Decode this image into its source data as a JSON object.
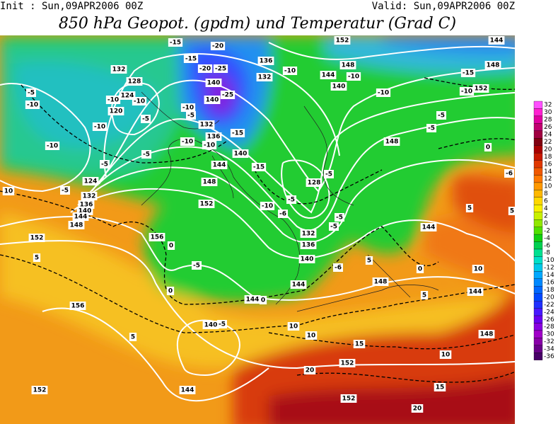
{
  "header": {
    "init": "Init : Sun,09APR2006 00Z",
    "valid": "Valid: Sun,09APR2006 00Z",
    "title": "850 hPa Geopot. (gpdm) und Temperatur (Grad C)"
  },
  "map": {
    "contour_labels": [
      "152",
      "144",
      "-15",
      "-20",
      "-15",
      "-20",
      "-25",
      "136",
      "-10",
      "148",
      "132",
      "144",
      "-10",
      "-15",
      "148",
      "140",
      "128",
      "132",
      "140",
      "-10",
      "-10",
      "152",
      "-25",
      "140",
      "124",
      "120",
      "-10",
      "-10",
      "-5",
      "-10",
      "-5",
      "-5",
      "-10",
      "-5",
      "-10",
      "-5",
      "132",
      "136",
      "-15",
      "-10",
      "-10",
      "-10",
      "-5",
      "148",
      "140",
      "144",
      "-15",
      "0",
      "-5",
      "124",
      "-5",
      "-6",
      "148",
      "128",
      "10",
      "-5",
      "132",
      "136",
      "140",
      "144",
      "148",
      "152",
      "-10",
      "-5",
      "-6",
      "-5",
      "-5",
      "5",
      "5",
      "152",
      "156",
      "0",
      "132",
      "136",
      "140",
      "144",
      "-5",
      "5",
      "0",
      "5",
      "10",
      "-6",
      "144",
      "148",
      "5",
      "144",
      "144",
      "0",
      "0",
      "156",
      "140",
      "-5",
      "10",
      "10",
      "148",
      "5",
      "15",
      "10",
      "152",
      "20",
      "144",
      "152",
      "15",
      "152",
      "20"
    ]
  },
  "colorbar": {
    "values": [
      32,
      30,
      28,
      26,
      24,
      22,
      20,
      18,
      16,
      14,
      12,
      10,
      8,
      6,
      4,
      2,
      0,
      -2,
      -4,
      -6,
      -8,
      -10,
      -12,
      -14,
      -16,
      -18,
      -20,
      -22,
      -24,
      -26,
      -28,
      -30,
      -32,
      -34,
      -36
    ],
    "colors": [
      "#ff50ff",
      "#ff20d0",
      "#e000a0",
      "#c00070",
      "#a00040",
      "#800010",
      "#a80000",
      "#c81800",
      "#e03800",
      "#f05800",
      "#ff7800",
      "#ff9800",
      "#ffb800",
      "#ffd800",
      "#f8f000",
      "#c8f000",
      "#90e800",
      "#50e000",
      "#10d010",
      "#00d050",
      "#00e090",
      "#00e0c8",
      "#00c8e8",
      "#00a8ff",
      "#0088ff",
      "#0068ff",
      "#0048ff",
      "#2030ff",
      "#4818ff",
      "#6800f0",
      "#8800e0",
      "#a000c8",
      "#8800a8",
      "#680088",
      "#480068"
    ]
  }
}
